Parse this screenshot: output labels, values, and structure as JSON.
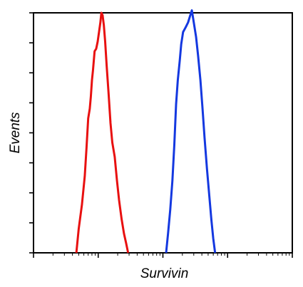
{
  "chart_data": {
    "type": "line",
    "title": "",
    "xlabel": "Survivin",
    "ylabel": "Events",
    "x_scale": "log",
    "xlim": [
      1,
      10000
    ],
    "ylim": [
      0,
      100
    ],
    "y_ticks": 8,
    "grid": false,
    "legend": "none",
    "series": [
      {
        "color": "#e81010",
        "points": [
          [
            4.6,
            0
          ],
          [
            5.0,
            10
          ],
          [
            5.6,
            20
          ],
          [
            6.2,
            32
          ],
          [
            6.6,
            44
          ],
          [
            7.0,
            56
          ],
          [
            7.4,
            60
          ],
          [
            7.7,
            65
          ],
          [
            8.0,
            72
          ],
          [
            8.3,
            76
          ],
          [
            8.8,
            84
          ],
          [
            9.3,
            85
          ],
          [
            9.8,
            88
          ],
          [
            10.3,
            92
          ],
          [
            10.8,
            96
          ],
          [
            11.2,
            100
          ],
          [
            11.7,
            99
          ],
          [
            12.2,
            95
          ],
          [
            12.8,
            88
          ],
          [
            13.5,
            78
          ],
          [
            14.5,
            66
          ],
          [
            15.5,
            54
          ],
          [
            16.5,
            46
          ],
          [
            18.0,
            40
          ],
          [
            19.5,
            30
          ],
          [
            21.0,
            22
          ],
          [
            23.0,
            14
          ],
          [
            25.0,
            8
          ],
          [
            27.0,
            4
          ],
          [
            29.0,
            0
          ]
        ]
      },
      {
        "color": "#1438e0",
        "points": [
          [
            112,
            0
          ],
          [
            120,
            8
          ],
          [
            130,
            18
          ],
          [
            140,
            30
          ],
          [
            150,
            45
          ],
          [
            160,
            62
          ],
          [
            170,
            72
          ],
          [
            182,
            80
          ],
          [
            192,
            87
          ],
          [
            205,
            92
          ],
          [
            225,
            94
          ],
          [
            245,
            96
          ],
          [
            265,
            99
          ],
          [
            280,
            101
          ],
          [
            300,
            96
          ],
          [
            325,
            90
          ],
          [
            350,
            82
          ],
          [
            380,
            72
          ],
          [
            410,
            60
          ],
          [
            440,
            48
          ],
          [
            480,
            35
          ],
          [
            520,
            24
          ],
          [
            560,
            14
          ],
          [
            600,
            6
          ],
          [
            640,
            0
          ]
        ]
      }
    ]
  }
}
